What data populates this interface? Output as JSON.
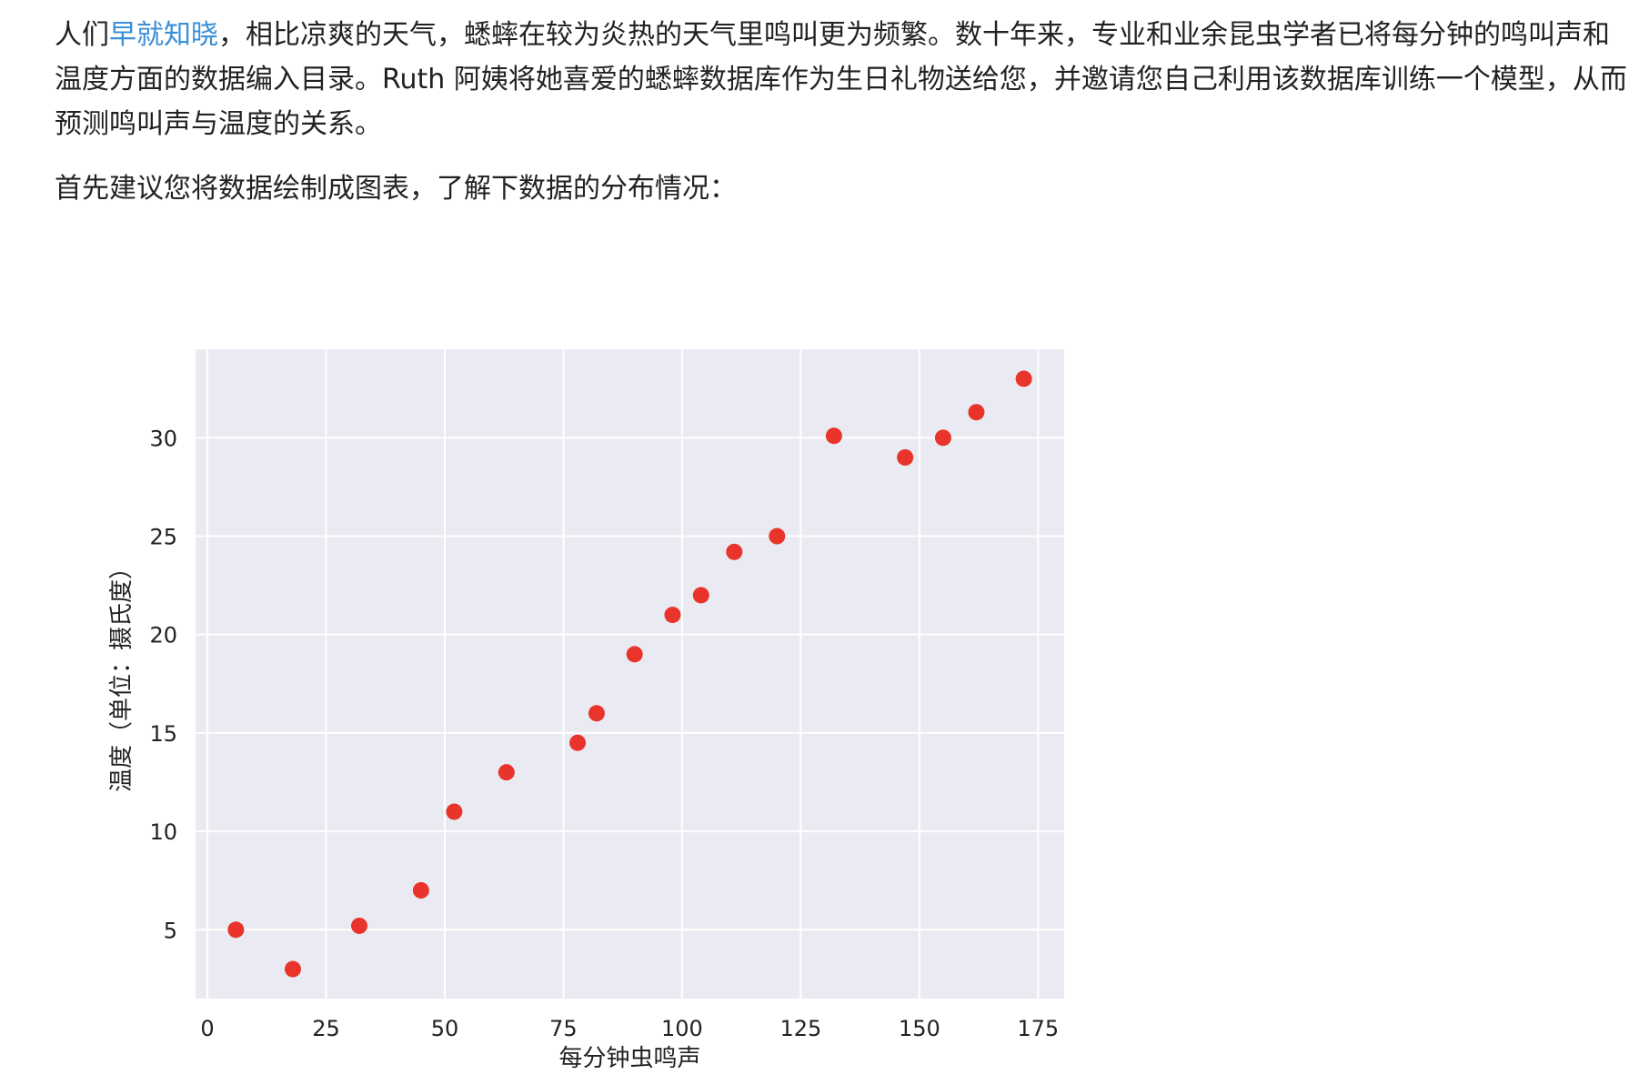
{
  "article": {
    "para1_prefix": "人们",
    "para1_link": "早就知晓",
    "para1_suffix": "，相比凉爽的天气，蟋蟀在较为炎热的天气里鸣叫更为频繁。数十年来，专业和业余昆虫学者已将每分钟的鸣叫声和温度方面的数据编入目录。Ruth 阿姨将她喜爱的蟋蟀数据库作为生日礼物送给您，并邀请您自己利用该数据库训练一个模型，从而预测鸣叫声与温度的关系。",
    "para2": "首先建议您将数据绘制成图表，了解下数据的分布情况："
  },
  "colors": {
    "link": "#3a8fd6",
    "plot_bg": "#eaeaf2",
    "grid": "#ffffff",
    "point": "#e8342a"
  },
  "chart_data": {
    "type": "scatter",
    "xlabel": "每分钟虫鸣声",
    "ylabel": "温度（单位：摄氏度）",
    "xlim": [
      -2.5,
      180.5
    ],
    "ylim": [
      1.5,
      34.5
    ],
    "xticks": [
      0,
      25,
      50,
      75,
      100,
      125,
      150,
      175
    ],
    "yticks": [
      5,
      10,
      15,
      20,
      25,
      30
    ],
    "grid": true,
    "points": [
      {
        "x": 6,
        "y": 5
      },
      {
        "x": 18,
        "y": 3
      },
      {
        "x": 32,
        "y": 5.2
      },
      {
        "x": 45,
        "y": 7
      },
      {
        "x": 52,
        "y": 11
      },
      {
        "x": 63,
        "y": 13
      },
      {
        "x": 78,
        "y": 14.5
      },
      {
        "x": 82,
        "y": 16
      },
      {
        "x": 90,
        "y": 19
      },
      {
        "x": 98,
        "y": 21
      },
      {
        "x": 104,
        "y": 22
      },
      {
        "x": 111,
        "y": 24.2
      },
      {
        "x": 120,
        "y": 25
      },
      {
        "x": 132,
        "y": 30.1
      },
      {
        "x": 147,
        "y": 29
      },
      {
        "x": 155,
        "y": 30
      },
      {
        "x": 162,
        "y": 31.3
      },
      {
        "x": 172,
        "y": 33
      }
    ]
  }
}
